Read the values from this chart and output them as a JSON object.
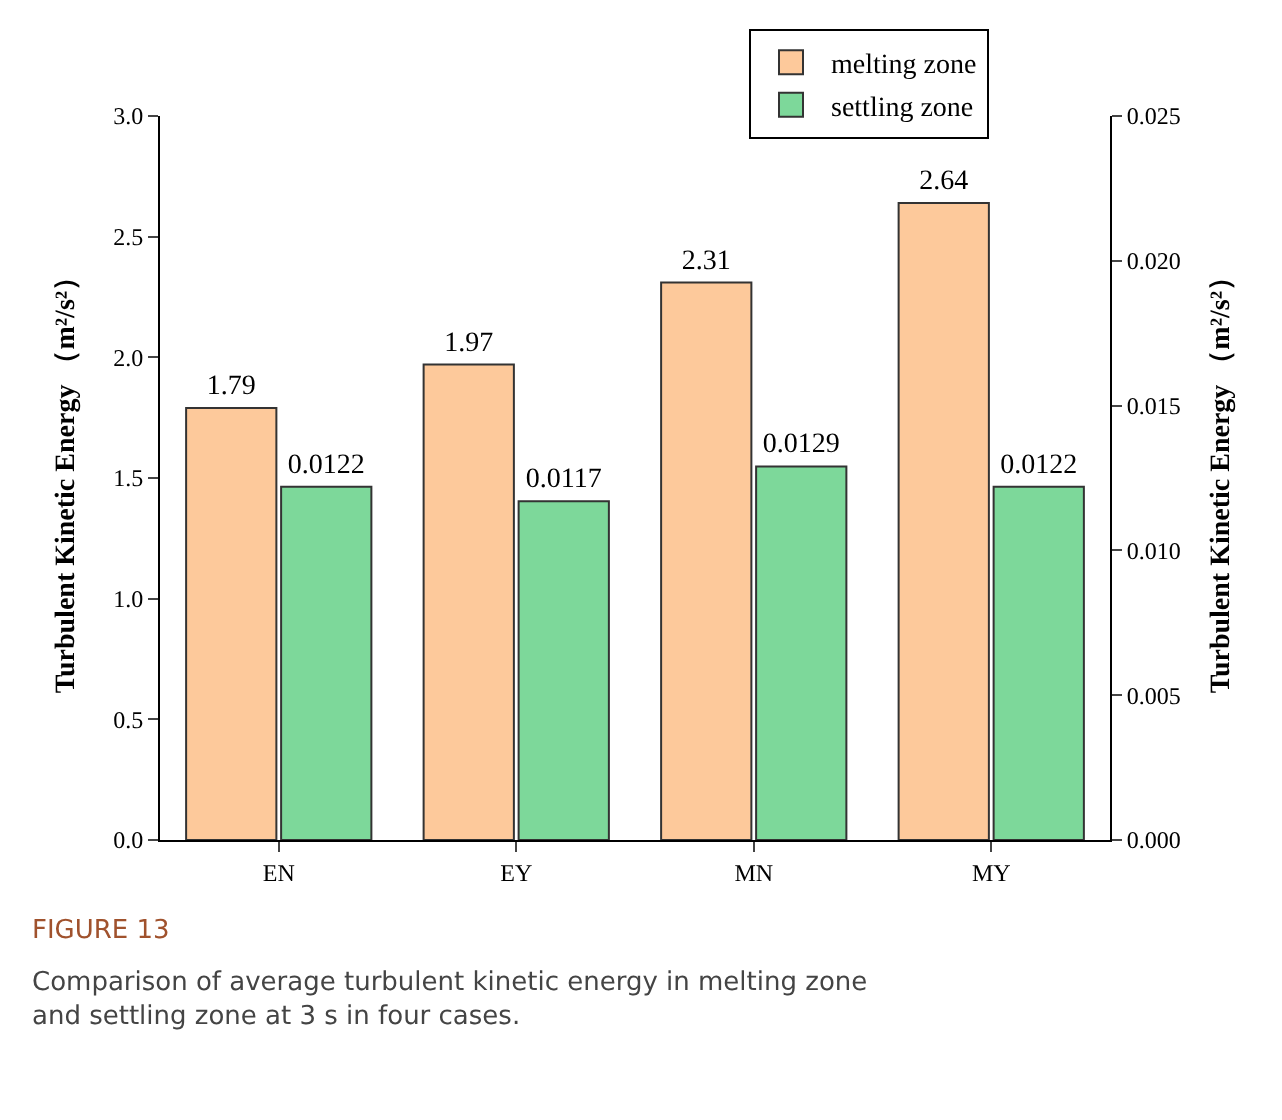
{
  "chart_data": {
    "type": "bar",
    "categories": [
      "EN",
      "EY",
      "MN",
      "MY"
    ],
    "series": [
      {
        "name": "melting zone",
        "color": "#fdc99b",
        "values": [
          1.79,
          1.97,
          2.31,
          2.64
        ]
      },
      {
        "name": "settling zone",
        "color": "#7dd89a",
        "values": [
          0.0122,
          0.0117,
          0.0129,
          0.0122
        ],
        "axis": "y2"
      }
    ],
    "ylabel": "Turbulent Kinetic Energy （m²/s²）",
    "y2label": "Turbulent Kinetic Energy （m²/s²）",
    "ylim": [
      0,
      3
    ],
    "yticks": [
      {
        "value": 0,
        "label": "0.0"
      },
      {
        "value": 0.5,
        "label": "0.5"
      },
      {
        "value": 1,
        "label": "1.0"
      },
      {
        "value": 1.5,
        "label": "1.5"
      },
      {
        "value": 2,
        "label": "2.0"
      },
      {
        "value": 2.5,
        "label": "2.5"
      },
      {
        "value": 3,
        "label": "3.0"
      }
    ],
    "y2lim": [
      0,
      0.025
    ],
    "y2ticks": [
      {
        "value": 0,
        "label": "0.000"
      },
      {
        "value": 0.005,
        "label": "0.005"
      },
      {
        "value": 0.01,
        "label": "0.010"
      },
      {
        "value": 0.015,
        "label": "0.015"
      },
      {
        "value": 0.02,
        "label": "0.020"
      },
      {
        "value": 0.025,
        "label": "0.025"
      }
    ],
    "data_labels": true,
    "legend": "top right",
    "annotations": [
      "FIGURE 13",
      "Comparison of average turbulent kinetic energy in melting zone and settling zone at 3 s in four cases."
    ]
  }
}
